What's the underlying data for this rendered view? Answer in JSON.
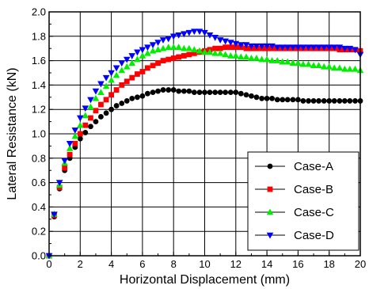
{
  "chart_data": {
    "type": "scatter",
    "xlabel": "Horizontal Displacement (mm)",
    "ylabel": "Lateral Resistance (kN)",
    "xlim": [
      0,
      20
    ],
    "ylim": [
      0.0,
      2.0
    ],
    "x_ticks": [
      0,
      2,
      4,
      6,
      8,
      10,
      12,
      14,
      16,
      18,
      20
    ],
    "x_tick_labels": [
      "0",
      "2",
      "4",
      "6",
      "8",
      "10",
      "12",
      "14",
      "16",
      "18",
      "20"
    ],
    "y_ticks": [
      0,
      0.2,
      0.4,
      0.6,
      0.8,
      1.0,
      1.2,
      1.4,
      1.6,
      1.8,
      2.0
    ],
    "y_tick_labels": [
      "0.0",
      "0.2",
      "0.4",
      "0.6",
      "0.8",
      "1.0",
      "1.2",
      "1.4",
      "1.6",
      "1.8",
      "2.0"
    ],
    "grid": true,
    "legend_position": "bottom-right",
    "series": [
      {
        "name": "Case-A",
        "color": "#000000",
        "marker": "circle",
        "x": [
          0,
          0.33,
          0.67,
          1.0,
          1.33,
          1.67,
          2.0,
          2.33,
          2.67,
          3.0,
          3.33,
          3.67,
          4.0,
          4.33,
          4.67,
          5.0,
          5.33,
          5.67,
          6.0,
          6.33,
          6.67,
          7.0,
          7.33,
          7.67,
          8.0,
          8.33,
          8.67,
          9.0,
          9.33,
          9.67,
          10.0,
          10.33,
          10.67,
          11.0,
          11.33,
          11.67,
          12.0,
          12.33,
          12.67,
          13.0,
          13.33,
          13.67,
          14.0,
          14.33,
          14.67,
          15.0,
          15.33,
          15.67,
          16.0,
          16.33,
          16.67,
          17.0,
          17.33,
          17.67,
          18.0,
          18.33,
          18.67,
          19.0,
          19.33,
          19.67,
          20.0
        ],
        "y": [
          0.0,
          0.32,
          0.55,
          0.7,
          0.8,
          0.89,
          0.96,
          1.01,
          1.06,
          1.1,
          1.14,
          1.17,
          1.2,
          1.23,
          1.25,
          1.27,
          1.29,
          1.3,
          1.31,
          1.33,
          1.34,
          1.35,
          1.36,
          1.36,
          1.36,
          1.35,
          1.35,
          1.35,
          1.34,
          1.34,
          1.34,
          1.34,
          1.34,
          1.34,
          1.34,
          1.34,
          1.34,
          1.33,
          1.32,
          1.31,
          1.3,
          1.29,
          1.29,
          1.29,
          1.28,
          1.28,
          1.28,
          1.28,
          1.28,
          1.27,
          1.27,
          1.27,
          1.27,
          1.27,
          1.27,
          1.27,
          1.27,
          1.27,
          1.27,
          1.27,
          1.27
        ]
      },
      {
        "name": "Case-B",
        "color": "#ff0000",
        "marker": "square",
        "x": [
          0,
          0.33,
          0.67,
          1.0,
          1.33,
          1.67,
          2.0,
          2.33,
          2.67,
          3.0,
          3.33,
          3.67,
          4.0,
          4.33,
          4.67,
          5.0,
          5.33,
          5.67,
          6.0,
          6.33,
          6.67,
          7.0,
          7.33,
          7.67,
          8.0,
          8.33,
          8.67,
          9.0,
          9.33,
          9.67,
          10.0,
          10.33,
          10.67,
          11.0,
          11.33,
          11.67,
          12.0,
          12.33,
          12.67,
          13.0,
          13.33,
          13.67,
          14.0,
          14.33,
          14.67,
          15.0,
          15.33,
          15.67,
          16.0,
          16.33,
          16.67,
          17.0,
          17.33,
          17.67,
          18.0,
          18.33,
          18.67,
          19.0,
          19.33,
          19.67,
          20.0
        ],
        "y": [
          0.0,
          0.33,
          0.56,
          0.72,
          0.83,
          0.92,
          1.0,
          1.07,
          1.13,
          1.19,
          1.24,
          1.28,
          1.32,
          1.36,
          1.4,
          1.43,
          1.46,
          1.49,
          1.51,
          1.54,
          1.56,
          1.58,
          1.6,
          1.61,
          1.62,
          1.63,
          1.64,
          1.65,
          1.66,
          1.67,
          1.68,
          1.69,
          1.7,
          1.7,
          1.71,
          1.71,
          1.71,
          1.71,
          1.7,
          1.7,
          1.7,
          1.7,
          1.7,
          1.7,
          1.7,
          1.7,
          1.7,
          1.7,
          1.7,
          1.7,
          1.7,
          1.7,
          1.7,
          1.7,
          1.7,
          1.7,
          1.69,
          1.69,
          1.69,
          1.69,
          1.68
        ]
      },
      {
        "name": "Case-C",
        "color": "#00ee00",
        "marker": "triangle-up",
        "x": [
          0,
          0.33,
          0.67,
          1.0,
          1.33,
          1.67,
          2.0,
          2.33,
          2.67,
          3.0,
          3.33,
          3.67,
          4.0,
          4.33,
          4.67,
          5.0,
          5.33,
          5.67,
          6.0,
          6.33,
          6.67,
          7.0,
          7.33,
          7.67,
          8.0,
          8.33,
          8.67,
          9.0,
          9.33,
          9.67,
          10.0,
          10.33,
          10.67,
          11.0,
          11.33,
          11.67,
          12.0,
          12.33,
          12.67,
          13.0,
          13.33,
          13.67,
          14.0,
          14.33,
          14.67,
          15.0,
          15.33,
          15.67,
          16.0,
          16.33,
          16.67,
          17.0,
          17.33,
          17.67,
          18.0,
          18.33,
          18.67,
          19.0,
          19.33,
          19.67,
          20.0
        ],
        "y": [
          0.0,
          0.34,
          0.58,
          0.76,
          0.88,
          0.98,
          1.07,
          1.15,
          1.22,
          1.29,
          1.34,
          1.39,
          1.44,
          1.48,
          1.52,
          1.55,
          1.58,
          1.61,
          1.64,
          1.66,
          1.68,
          1.69,
          1.7,
          1.71,
          1.71,
          1.71,
          1.7,
          1.7,
          1.69,
          1.68,
          1.67,
          1.67,
          1.66,
          1.66,
          1.65,
          1.64,
          1.64,
          1.63,
          1.63,
          1.62,
          1.62,
          1.61,
          1.61,
          1.6,
          1.6,
          1.59,
          1.59,
          1.58,
          1.58,
          1.57,
          1.57,
          1.56,
          1.56,
          1.55,
          1.55,
          1.54,
          1.54,
          1.53,
          1.53,
          1.53,
          1.52
        ]
      },
      {
        "name": "Case-D",
        "color": "#0000ff",
        "marker": "triangle-down",
        "x": [
          0,
          0.33,
          0.67,
          1.0,
          1.33,
          1.67,
          2.0,
          2.33,
          2.67,
          3.0,
          3.33,
          3.67,
          4.0,
          4.33,
          4.67,
          5.0,
          5.33,
          5.67,
          6.0,
          6.33,
          6.67,
          7.0,
          7.33,
          7.67,
          8.0,
          8.33,
          8.67,
          9.0,
          9.33,
          9.67,
          10.0,
          10.33,
          10.67,
          11.0,
          11.33,
          11.67,
          12.0,
          12.33,
          12.67,
          13.0,
          13.33,
          13.67,
          14.0,
          14.33,
          14.67,
          15.0,
          15.33,
          15.67,
          16.0,
          16.33,
          16.67,
          17.0,
          17.33,
          17.67,
          18.0,
          18.33,
          18.67,
          19.0,
          19.33,
          19.67,
          20.0
        ],
        "y": [
          0.0,
          0.34,
          0.6,
          0.78,
          0.92,
          1.03,
          1.13,
          1.21,
          1.28,
          1.35,
          1.41,
          1.46,
          1.5,
          1.54,
          1.58,
          1.61,
          1.64,
          1.67,
          1.69,
          1.71,
          1.73,
          1.75,
          1.77,
          1.78,
          1.8,
          1.81,
          1.82,
          1.83,
          1.84,
          1.84,
          1.83,
          1.81,
          1.79,
          1.77,
          1.76,
          1.75,
          1.74,
          1.73,
          1.73,
          1.72,
          1.72,
          1.72,
          1.72,
          1.72,
          1.71,
          1.71,
          1.71,
          1.71,
          1.71,
          1.71,
          1.71,
          1.71,
          1.71,
          1.71,
          1.71,
          1.71,
          1.71,
          1.7,
          1.7,
          1.69,
          1.65
        ]
      }
    ]
  }
}
